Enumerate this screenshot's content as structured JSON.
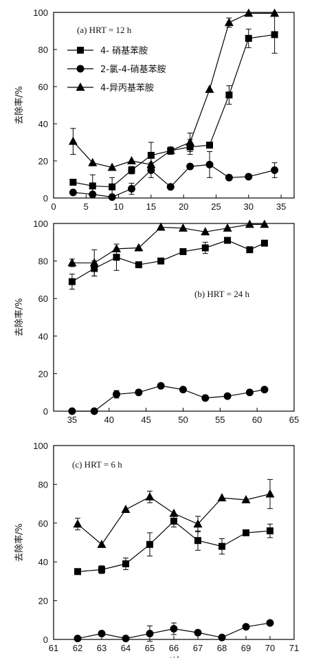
{
  "chart_data": [
    {
      "type": "line",
      "title": "(a) HRT = 12 h",
      "ylabel": "去除率/%",
      "xlim": [
        0,
        37
      ],
      "ylim": [
        0,
        100
      ],
      "x_ticks": [
        0,
        5,
        10,
        15,
        20,
        25,
        30,
        35
      ],
      "y_ticks": [
        0,
        20,
        40,
        60,
        80,
        100
      ],
      "legend": "top-left",
      "series": [
        {
          "name": "4- 硝基苯胺",
          "marker": "square",
          "x": [
            3,
            6,
            9,
            12,
            15,
            18,
            21,
            24,
            27,
            30,
            34
          ],
          "y": [
            8.5,
            6.5,
            6,
            15,
            23,
            25.5,
            27.5,
            28.5,
            55.5,
            86,
            88
          ],
          "err": [
            0,
            6,
            5,
            2,
            7,
            2,
            4,
            0,
            5,
            5,
            10
          ]
        },
        {
          "name": "2-氯-4-硝基苯胺",
          "marker": "circle",
          "x": [
            3,
            6,
            9,
            12,
            15,
            18,
            21,
            24,
            27,
            30,
            34
          ],
          "y": [
            3,
            2,
            0.5,
            5,
            15,
            6,
            17,
            18,
            11,
            11.5,
            15
          ],
          "err": [
            0,
            0,
            0,
            3,
            4,
            0,
            0,
            7,
            0,
            0,
            4
          ]
        },
        {
          "name": "4-异丙基苯胺",
          "marker": "triangle",
          "x": [
            3,
            6,
            9,
            12,
            15,
            18,
            21,
            24,
            27,
            30,
            34
          ],
          "y": [
            30.5,
            19,
            16.5,
            20,
            18,
            25.5,
            30,
            58.5,
            94.5,
            99.5,
            99.5
          ],
          "err": [
            7,
            0,
            0,
            0,
            0,
            0,
            5,
            0,
            2.5,
            0,
            0
          ]
        }
      ]
    },
    {
      "type": "line",
      "title": "(b) HRT = 24 h",
      "ylabel": "去除率/%",
      "xlim": [
        32.5,
        65
      ],
      "ylim": [
        0,
        100
      ],
      "x_ticks": [
        35,
        40,
        45,
        50,
        55,
        60,
        65
      ],
      "y_ticks": [
        0,
        20,
        40,
        60,
        80,
        100
      ],
      "series": [
        {
          "name": "4- 硝基苯胺",
          "marker": "square",
          "x": [
            35,
            38,
            41,
            44,
            47,
            50,
            53,
            56,
            59,
            61
          ],
          "y": [
            69,
            76,
            82,
            78,
            80,
            85,
            87,
            91,
            86,
            89.5
          ],
          "err": [
            4,
            4,
            7,
            0,
            0,
            0,
            3,
            0,
            0,
            0
          ]
        },
        {
          "name": "2-氯-4-硝基苯胺",
          "marker": "circle",
          "x": [
            35,
            38,
            41,
            44,
            47,
            50,
            53,
            56,
            59,
            61
          ],
          "y": [
            0,
            0,
            9,
            10,
            13.5,
            11.5,
            7,
            8,
            10,
            11.5
          ],
          "err": [
            0,
            0,
            2,
            0,
            0,
            0,
            0,
            0,
            0,
            0
          ]
        },
        {
          "name": "4-异丙基苯胺",
          "marker": "triangle",
          "x": [
            35,
            38,
            41,
            44,
            47,
            50,
            53,
            56,
            59,
            61
          ],
          "y": [
            79,
            79,
            86.5,
            87,
            98,
            97.5,
            95.5,
            97.5,
            99.5,
            99.5
          ],
          "err": [
            2,
            7,
            0,
            0,
            0,
            0,
            0,
            0,
            0,
            0
          ]
        }
      ]
    },
    {
      "type": "line",
      "title": "(c) HRT = 6 h",
      "ylabel": "去除率/%",
      "xlabel": "t/d",
      "xlim": [
        61,
        71
      ],
      "ylim": [
        0,
        100
      ],
      "x_ticks": [
        61,
        62,
        63,
        64,
        65,
        66,
        67,
        68,
        69,
        70,
        71
      ],
      "y_ticks": [
        0,
        20,
        40,
        60,
        80,
        100
      ],
      "series": [
        {
          "name": "4- 硝基苯胺",
          "marker": "square",
          "x": [
            62,
            63,
            64,
            65,
            66,
            67,
            68,
            69,
            70
          ],
          "y": [
            35,
            36,
            39,
            49,
            61,
            51,
            48,
            55,
            56
          ],
          "err": [
            0,
            2,
            3,
            6,
            3,
            5,
            4,
            0,
            3.5
          ]
        },
        {
          "name": "2-氯-4-硝基苯胺",
          "marker": "circle",
          "x": [
            62,
            63,
            64,
            65,
            66,
            67,
            68,
            69,
            70
          ],
          "y": [
            0.5,
            3,
            0.5,
            3,
            5.5,
            3.5,
            1,
            6.5,
            8.5
          ],
          "err": [
            0,
            0,
            0,
            4,
            3,
            0,
            0,
            0,
            0
          ]
        },
        {
          "name": "4-异丙基苯胺",
          "marker": "triangle",
          "x": [
            62,
            63,
            64,
            65,
            66,
            67,
            68,
            69,
            70
          ],
          "y": [
            59.5,
            49,
            67,
            73.5,
            65,
            59.5,
            73,
            72,
            75
          ],
          "err": [
            3,
            0,
            0,
            3,
            0,
            4,
            0,
            0,
            7.5
          ]
        }
      ]
    }
  ]
}
